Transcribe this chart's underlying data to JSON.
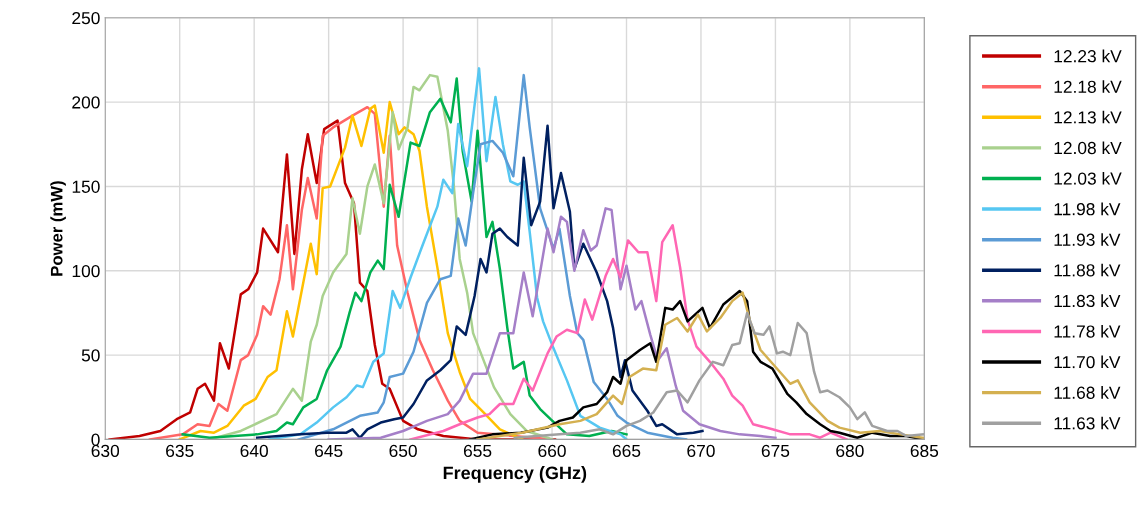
{
  "chart_data": {
    "type": "line",
    "xlabel": "Frequency (GHz)",
    "ylabel": "Power (mW)",
    "xlim": [
      630,
      685
    ],
    "xticks": [
      630,
      635,
      640,
      645,
      650,
      655,
      660,
      665,
      670,
      675,
      680,
      685
    ],
    "ylim": [
      0,
      250
    ],
    "yticks": [
      0,
      50,
      100,
      150,
      200,
      250
    ],
    "grid": true,
    "legend": "right",
    "marker": "none",
    "line_style": "solid",
    "series": [
      {
        "name": "12.23 kV",
        "color": "#c00000",
        "x": [
          630.3,
          632.3,
          633.7,
          634.8,
          635.7,
          636.2,
          636.7,
          637.3,
          637.7,
          638.3,
          639.1,
          639.6,
          640.2,
          640.6,
          641.6,
          642.2,
          642.7,
          643.2,
          643.6,
          644.2,
          644.7,
          645.6,
          646.1,
          646.7,
          647.1,
          647.6,
          648.1,
          648.6,
          649.1,
          650,
          651,
          652.7,
          655,
          660.2
        ],
        "values": [
          0,
          2,
          5,
          12,
          16,
          30,
          33,
          23,
          57,
          42,
          86,
          89,
          99,
          125,
          111,
          169,
          110,
          160,
          181,
          152,
          184,
          189,
          152,
          140,
          93,
          88,
          56,
          33,
          30,
          11,
          6,
          2,
          0,
          0
        ]
      },
      {
        "name": "12.18 kV",
        "color": "#ff6666",
        "x": [
          633,
          635.2,
          636.2,
          637,
          637.6,
          638.2,
          639.1,
          639.6,
          640.2,
          640.6,
          641.1,
          641.7,
          642.2,
          642.6,
          643.2,
          643.6,
          644.2,
          644.6,
          645.3,
          646.6,
          647.6,
          648.1,
          648.7,
          649.1,
          649.6,
          650.3,
          651.1,
          652,
          653,
          653.8,
          655,
          660
        ],
        "values": [
          0,
          3,
          9,
          8,
          21,
          17,
          47,
          50,
          62,
          79,
          74,
          95,
          127,
          89,
          136,
          155,
          131,
          180,
          185,
          192,
          197,
          193,
          138,
          180,
          115,
          87,
          59,
          41,
          23,
          11,
          4,
          0
        ]
      },
      {
        "name": "12.13 kV",
        "color": "#ffc000",
        "x": [
          635,
          636.4,
          637.3,
          638.2,
          639.3,
          640.1,
          640.9,
          641.5,
          642.2,
          642.6,
          643.8,
          644.2,
          644.6,
          645.1,
          646.1,
          646.6,
          647.2,
          647.8,
          648.1,
          648.7,
          649.1,
          649.7,
          650.1,
          650.7,
          651.1,
          651.6,
          652.3,
          653,
          653.8,
          654.5,
          655.4,
          656.5,
          658
        ],
        "values": [
          0,
          5,
          4,
          8,
          20,
          24,
          37,
          41,
          76,
          61,
          116,
          98,
          149,
          150,
          173,
          192,
          174,
          196,
          198,
          170,
          200,
          181,
          185,
          181,
          171,
          138,
          102,
          63,
          40,
          24,
          16,
          6,
          0
        ]
      },
      {
        "name": "12.08 kV",
        "color": "#a9d18e",
        "x": [
          637,
          639.1,
          641.5,
          642.6,
          643.2,
          643.8,
          644.2,
          644.6,
          645.3,
          646.2,
          646.6,
          647.1,
          647.6,
          648.1,
          648.7,
          649.3,
          649.7,
          650.3,
          650.7,
          651.1,
          651.8,
          652.3,
          653,
          653.4,
          653.8,
          654.3,
          654.7,
          655.4,
          656.1,
          657.2,
          658.3,
          659.7,
          660
        ],
        "values": [
          0,
          5,
          15,
          30,
          23,
          58,
          68,
          85,
          99,
          110,
          143,
          122,
          150,
          163,
          140,
          194,
          172,
          185,
          209,
          207,
          216,
          215,
          183,
          151,
          107,
          87,
          63,
          47,
          31,
          15,
          5,
          1,
          0
        ]
      },
      {
        "name": "12.03 kV",
        "color": "#00b050",
        "x": [
          635.2,
          637,
          640.2,
          641.5,
          642.2,
          642.6,
          643.3,
          644.2,
          644.9,
          645.8,
          646.4,
          646.8,
          647.2,
          647.8,
          648.3,
          648.7,
          649.1,
          649.7,
          650.5,
          651.1,
          651.8,
          652.5,
          653.2,
          653.6,
          654,
          654.6,
          655,
          655.6,
          656,
          656.5,
          657,
          657.4,
          658.1,
          658.5,
          659.2,
          659.9,
          661,
          662.5,
          664,
          665
        ],
        "values": [
          3,
          1,
          3,
          5,
          10,
          9,
          19,
          24,
          41,
          55,
          75,
          87,
          82,
          99,
          106,
          101,
          151,
          132,
          176,
          174,
          194,
          202,
          188,
          214,
          171,
          141,
          183,
          120,
          129,
          101,
          66,
          42,
          46,
          26,
          18,
          12,
          3,
          2,
          5,
          3
        ]
      },
      {
        "name": "11.98 kV",
        "color": "#56c7f2",
        "x": [
          641,
          643.1,
          644.2,
          645.3,
          646.2,
          646.9,
          647.3,
          648,
          648.7,
          649.3,
          649.8,
          650.5,
          651.3,
          652.3,
          652.7,
          653.3,
          653.7,
          654.3,
          655.1,
          655.6,
          656.2,
          656.7,
          657.2,
          657.7,
          658.1,
          658.5,
          659,
          659.4,
          660.1,
          661,
          661.9,
          663.2,
          664.6,
          665
        ],
        "values": [
          0,
          3,
          10,
          19,
          25,
          32,
          31,
          46,
          51,
          88,
          78,
          96,
          115,
          138,
          154,
          146,
          187,
          162,
          220,
          165,
          203,
          175,
          153,
          151,
          153,
          123,
          84,
          70,
          54,
          35,
          14,
          7,
          3,
          0
        ]
      },
      {
        "name": "11.93 kV",
        "color": "#5b9bd5",
        "x": [
          643,
          645.3,
          647.1,
          648.3,
          648.7,
          649.1,
          650,
          650.7,
          651.6,
          652.5,
          653.2,
          653.7,
          654.2,
          654.7,
          655.2,
          656,
          656.7,
          657.4,
          658.1,
          658.5,
          659.2,
          660.1,
          660.5,
          661.2,
          661.7,
          662.1,
          662.8,
          663.7,
          664.4,
          665,
          666.4,
          668.1,
          669
        ],
        "values": [
          0,
          6,
          14,
          16,
          22,
          37,
          39,
          52,
          81,
          95,
          97,
          131,
          115,
          146,
          175,
          177,
          170,
          156,
          216,
          185,
          137,
          113,
          125,
          85,
          63,
          59,
          34,
          24,
          14,
          10,
          4,
          1,
          0
        ]
      },
      {
        "name": "11.88 kV",
        "color": "#002060",
        "x": [
          640.2,
          643.1,
          644.9,
          646.2,
          646.6,
          647.1,
          647.6,
          648.5,
          649.4,
          650,
          650.7,
          651.6,
          652.5,
          653.2,
          653.6,
          654.2,
          654.8,
          655.2,
          655.6,
          656,
          656.5,
          657,
          657.7,
          658.1,
          658.6,
          659.2,
          659.7,
          660.1,
          660.6,
          661.2,
          661.5,
          662.1,
          663,
          663.7,
          664.1,
          664.6,
          664.9,
          665.4,
          666.4,
          667,
          667.4,
          668.4,
          669.5,
          670.1
        ],
        "values": [
          1,
          3,
          4,
          4,
          6,
          1,
          6,
          10,
          12,
          13,
          21,
          35,
          41,
          47,
          67,
          62,
          85,
          107,
          99,
          122,
          125,
          120,
          115,
          167,
          127,
          141,
          186,
          137,
          158,
          135,
          101,
          116,
          99,
          82,
          66,
          37,
          47,
          29,
          17,
          8,
          9,
          3,
          4,
          5
        ]
      },
      {
        "name": "11.83 kV",
        "color": "#a57fc8",
        "x": [
          645,
          648.5,
          650,
          651.6,
          653,
          653.8,
          654.7,
          655.6,
          656.5,
          657.4,
          658.1,
          658.7,
          659.7,
          660.1,
          660.6,
          661,
          661.5,
          662.1,
          662.6,
          663,
          663.6,
          664,
          664.6,
          665,
          665.6,
          666,
          666.6,
          667.1,
          667.7,
          668.3,
          668.8,
          669.9,
          671.3,
          672.6,
          674,
          675
        ],
        "values": [
          0,
          1,
          5,
          11,
          15,
          23,
          39,
          39,
          63,
          63,
          99,
          73,
          125,
          111,
          132,
          129,
          100,
          124,
          112,
          115,
          137,
          136,
          89,
          103,
          77,
          82,
          62,
          47,
          54,
          32,
          17,
          9,
          5,
          3,
          2,
          1
        ]
      },
      {
        "name": "11.78 kV",
        "color": "#ff66b3",
        "x": [
          650.5,
          652.7,
          653.8,
          655,
          655.8,
          656.5,
          657.4,
          658.1,
          658.7,
          659.7,
          660.3,
          661,
          661.7,
          662.2,
          662.7,
          663.6,
          664.1,
          664.6,
          665.1,
          665.8,
          666.4,
          667,
          667.4,
          668.1,
          668.6,
          669.1,
          669.7,
          670.6,
          671.5,
          672.1,
          672.8,
          673.5,
          674.8,
          676,
          677.3,
          678,
          678.7,
          679.8
        ],
        "values": [
          0,
          5,
          9,
          13,
          15,
          21,
          21,
          36,
          29,
          51,
          61,
          65,
          63,
          83,
          71,
          97,
          107,
          96,
          118,
          111,
          111,
          82,
          117,
          127,
          102,
          71,
          55,
          46,
          36,
          26,
          20,
          9,
          6,
          3,
          3,
          1,
          4,
          0
        ]
      },
      {
        "name": "11.70 kV",
        "color": "#000000",
        "x": [
          654.5,
          656,
          657.9,
          659.7,
          660.5,
          661.4,
          662.1,
          663,
          663.7,
          664.1,
          664.6,
          665,
          665.9,
          666.6,
          667,
          667.6,
          668.1,
          668.6,
          669.1,
          670.1,
          670.6,
          671.5,
          672.6,
          673.1,
          673.5,
          674,
          674.8,
          675.8,
          676.4,
          677.1,
          678,
          678.7,
          679.3,
          680.5,
          681.5,
          682.7,
          683.8,
          684.9
        ],
        "values": [
          0,
          3,
          4,
          7,
          11,
          13,
          19,
          21,
          28,
          37,
          33,
          47,
          53,
          57,
          46,
          78,
          77,
          82,
          70,
          78,
          66,
          80,
          88,
          82,
          52,
          46,
          42,
          27,
          22,
          15,
          9,
          5,
          4,
          1,
          4,
          2,
          2,
          0
        ]
      },
      {
        "name": "11.68 kV",
        "color": "#d4b050",
        "x": [
          655,
          658,
          660.5,
          661.9,
          663,
          664.1,
          664.7,
          665.2,
          666.1,
          667,
          667.6,
          668.4,
          669.1,
          669.8,
          670.4,
          671.3,
          672.1,
          672.8,
          673.3,
          674,
          674.8,
          676,
          676.5,
          677.3,
          678.5,
          679.3,
          680.7,
          682,
          683.4,
          684.9
        ],
        "values": [
          0,
          4,
          9,
          11,
          15,
          26,
          21,
          37,
          42,
          41,
          68,
          72,
          64,
          74,
          64,
          72,
          82,
          87,
          70,
          53,
          45,
          33,
          35,
          22,
          11,
          7,
          4,
          5,
          3,
          1
        ]
      },
      {
        "name": "11.63 kV",
        "color": "#a0a0a0",
        "x": [
          657.5,
          660.5,
          661.9,
          663.2,
          664.1,
          665,
          665.9,
          666.8,
          667.7,
          668.4,
          669.1,
          669.9,
          670.8,
          671.5,
          672.1,
          672.6,
          673.1,
          673.6,
          674.2,
          674.6,
          675.1,
          675.5,
          676,
          676.5,
          677.1,
          677.6,
          678,
          678.5,
          679.3,
          680,
          680.5,
          681,
          681.5,
          682.5,
          683.2,
          683.8,
          684.9
        ],
        "values": [
          1,
          3,
          4,
          6,
          3,
          8,
          11,
          16,
          28,
          29,
          22,
          35,
          46,
          44,
          56,
          57,
          75,
          63,
          62,
          67,
          51,
          52,
          50,
          69,
          63,
          40,
          28,
          29,
          25,
          19,
          12,
          16,
          8,
          5,
          5,
          2,
          3
        ]
      }
    ]
  }
}
